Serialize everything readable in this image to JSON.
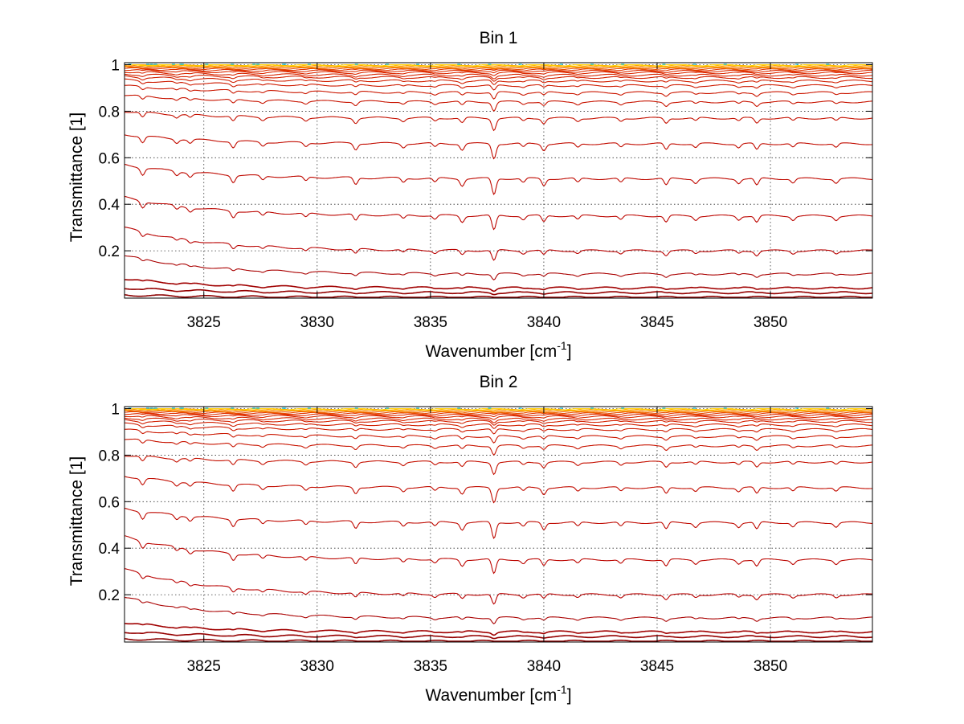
{
  "chart_data": [
    {
      "type": "line",
      "title": "Bin 1",
      "xlabel": "Wavenumber [cm",
      "xlabel_sup": "-1",
      "xlabel_end": "]",
      "ylabel": "Transmittance [1]",
      "xlim": [
        3821.5,
        3854.5
      ],
      "ylim": [
        0.0,
        1.0
      ],
      "x_ticks": [
        3825,
        3830,
        3835,
        3840,
        3845,
        3850
      ],
      "x_tick_labels": [
        "3825",
        "3830",
        "3835",
        "3840",
        "3845",
        "3850"
      ],
      "y_ticks": [
        0.2,
        0.4,
        0.6,
        0.8,
        1
      ],
      "y_tick_labels": [
        "0.2",
        "0.4",
        "0.6",
        "0.8",
        "1"
      ],
      "grid": true,
      "series_levels": [
        0.0,
        0.02,
        0.04,
        0.1,
        0.2,
        0.35,
        0.51,
        0.66,
        0.77,
        0.84,
        0.88,
        0.91,
        0.93,
        0.945,
        0.955,
        0.965,
        0.972,
        0.978,
        0.982,
        0.986,
        0.989,
        0.992,
        0.994,
        0.996,
        0.998
      ],
      "series_start_levels": [
        0.01,
        0.04,
        0.08,
        0.18,
        0.3,
        0.43,
        0.57,
        0.7,
        0.8,
        0.87,
        0.91,
        0.935,
        0.95,
        0.96,
        0.97,
        0.978,
        0.984,
        0.988,
        0.991,
        0.993,
        0.995,
        0.997,
        0.998,
        0.999,
        1.0
      ],
      "absorption_lines_x": [
        3822.3,
        3823.8,
        3824.4,
        3826.3,
        3827.6,
        3829.5,
        3831.7,
        3833.8,
        3835.2,
        3836.4,
        3837.8,
        3839.1,
        3840.0,
        3841.5,
        3843.4,
        3845.4,
        3846.7,
        3848.6,
        3849.4,
        3851.0,
        3852.9
      ],
      "colors": {
        "deep": "#8b0000",
        "mid": "#e03000",
        "warm": "#ff9a00",
        "top": "#ffd000",
        "accent": "#00bcd4"
      }
    },
    {
      "type": "line",
      "title": "Bin 2",
      "xlabel": "Wavenumber [cm",
      "xlabel_sup": "-1",
      "xlabel_end": "]",
      "ylabel": "Transmittance [1]",
      "xlim": [
        3821.5,
        3854.5
      ],
      "ylim": [
        0.0,
        1.0
      ],
      "x_ticks": [
        3825,
        3830,
        3835,
        3840,
        3845,
        3850
      ],
      "x_tick_labels": [
        "3825",
        "3830",
        "3835",
        "3840",
        "3845",
        "3850"
      ],
      "y_ticks": [
        0.2,
        0.4,
        0.6,
        0.8,
        1
      ],
      "y_tick_labels": [
        "0.2",
        "0.4",
        "0.6",
        "0.8",
        "1"
      ],
      "grid": true,
      "series_levels": [
        0.0,
        0.02,
        0.04,
        0.1,
        0.2,
        0.35,
        0.51,
        0.66,
        0.77,
        0.84,
        0.88,
        0.91,
        0.93,
        0.945,
        0.955,
        0.965,
        0.972,
        0.978,
        0.982,
        0.986,
        0.989,
        0.992,
        0.994,
        0.996,
        0.998
      ],
      "series_start_levels": [
        0.01,
        0.04,
        0.08,
        0.19,
        0.31,
        0.45,
        0.57,
        0.71,
        0.8,
        0.87,
        0.91,
        0.935,
        0.95,
        0.96,
        0.97,
        0.978,
        0.984,
        0.988,
        0.991,
        0.993,
        0.995,
        0.997,
        0.998,
        0.999,
        1.0
      ],
      "absorption_lines_x": [
        3822.3,
        3823.8,
        3824.4,
        3826.3,
        3827.6,
        3829.5,
        3831.7,
        3833.8,
        3835.2,
        3836.4,
        3837.8,
        3839.1,
        3840.0,
        3841.5,
        3843.4,
        3845.4,
        3846.7,
        3848.6,
        3849.4,
        3851.0,
        3852.9
      ],
      "colors": {
        "deep": "#8b0000",
        "mid": "#e03000",
        "warm": "#ff9a00",
        "top": "#ffd000",
        "accent": "#00bcd4"
      }
    }
  ]
}
